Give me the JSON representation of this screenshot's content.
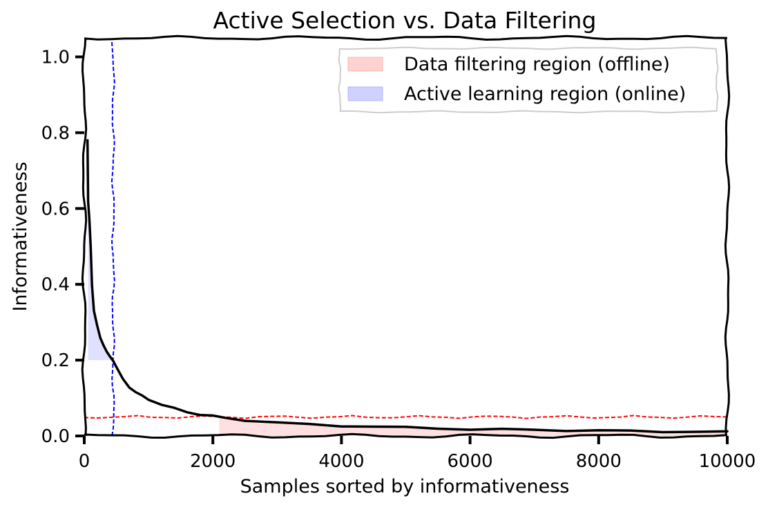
{
  "chart_data": {
    "type": "line",
    "title": "Active Selection vs. Data Filtering",
    "xlabel": "Samples sorted by informativeness",
    "ylabel": "Informativeness",
    "xlim": [
      0,
      10000
    ],
    "ylim": [
      0,
      1.05
    ],
    "x_ticks": [
      0,
      2000,
      4000,
      6000,
      8000,
      10000
    ],
    "x_tick_labels": [
      "0",
      "2000",
      "4000",
      "6000",
      "8000",
      "10000"
    ],
    "y_ticks": [
      0.0,
      0.2,
      0.4,
      0.6,
      0.8,
      1.0
    ],
    "y_tick_labels": [
      "0.0",
      "0.2",
      "0.4",
      "0.6",
      "0.8",
      "1.0"
    ],
    "grid": false,
    "legend_position": "top-right",
    "series": [
      {
        "color": "#000000",
        "x": [
          50,
          60,
          80,
          100,
          120,
          150,
          200,
          250,
          300,
          350,
          400,
          450,
          500,
          600,
          700,
          800,
          900,
          1000,
          1200,
          1400,
          1600,
          1800,
          2000,
          2200,
          2500,
          3000,
          3500,
          4000,
          4500,
          5000,
          5500,
          6000,
          6500,
          7000,
          7500,
          8000,
          8500,
          9000,
          9500,
          10000
        ],
        "y": [
          0.78,
          0.62,
          0.57,
          0.5,
          0.4,
          0.33,
          0.29,
          0.26,
          0.24,
          0.22,
          0.21,
          0.2,
          0.18,
          0.15,
          0.13,
          0.115,
          0.105,
          0.097,
          0.083,
          0.072,
          0.063,
          0.057,
          0.052,
          0.047,
          0.042,
          0.035,
          0.03,
          0.027,
          0.025,
          0.022,
          0.02,
          0.018,
          0.017,
          0.016,
          0.015,
          0.014,
          0.013,
          0.012,
          0.011,
          0.01
        ]
      }
    ],
    "reference_lines": [
      {
        "orientation": "horizontal",
        "value": 0.05,
        "color": "#ff0000",
        "style": "dashed"
      },
      {
        "orientation": "vertical",
        "value": 450,
        "color": "#0000ff",
        "style": "dashed"
      }
    ],
    "regions": [
      {
        "name": "Data filtering region (offline)",
        "color": "#ff9999",
        "opacity": 0.3,
        "x_start": 2100,
        "x_end": 10000,
        "bound": 0.05,
        "side": "below"
      },
      {
        "name": "Active learning region (online)",
        "color": "#9999ff",
        "opacity": 0.3,
        "x_start": 60,
        "x_end": 450,
        "bound": 0.2,
        "side": "above"
      }
    ]
  }
}
